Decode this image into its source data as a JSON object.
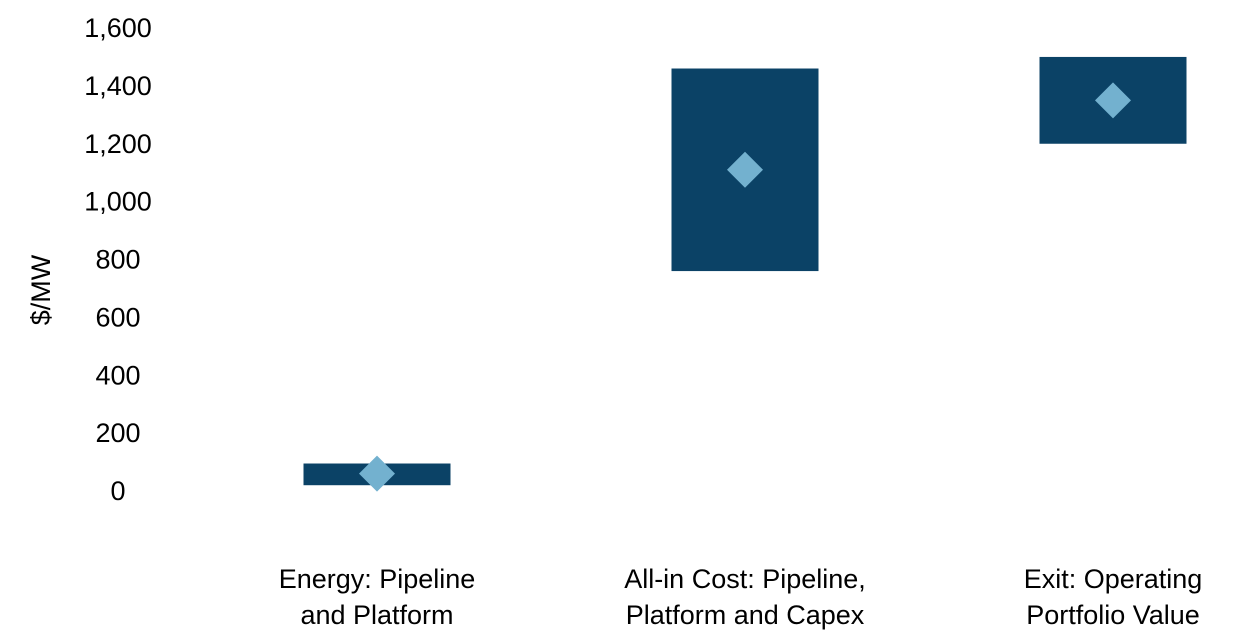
{
  "chart_data": {
    "type": "range-bar",
    "categories": [
      [
        "Energy: Pipeline",
        "and Platform"
      ],
      [
        "All-in Cost: Pipeline,",
        "Platform and Capex"
      ],
      [
        "Exit: Operating",
        "Portfolio Value"
      ]
    ],
    "ranges": [
      {
        "low": 20,
        "high": 95,
        "midpoint": 60
      },
      {
        "low": 760,
        "high": 1460,
        "midpoint": 1110
      },
      {
        "low": 1200,
        "high": 1500,
        "midpoint": 1350
      }
    ],
    "ylabel": "$/MW",
    "ylim": [
      0,
      1600
    ],
    "yticks": [
      0,
      200,
      400,
      600,
      800,
      1000,
      1200,
      1400,
      1600
    ],
    "ytick_labels": [
      "0",
      "200",
      "400",
      "600",
      "800",
      "1,000",
      "1,200",
      "1,400",
      "1,600"
    ],
    "grid": false,
    "legend": "none",
    "colors": {
      "range_bar": "#0b4266",
      "midpoint_marker": "#73b1cf"
    }
  }
}
